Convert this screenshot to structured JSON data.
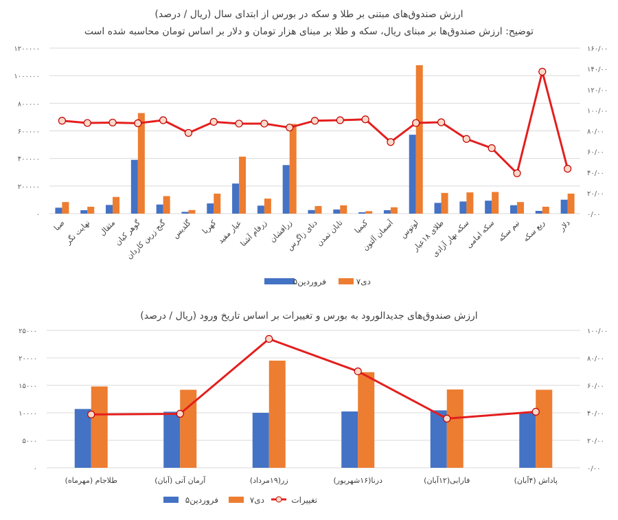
{
  "colors": {
    "series1": "#4472C4",
    "series2": "#ED7D31",
    "line": "#E41E1E",
    "marker_fill": "#FAD9C9",
    "marker_stroke": "#C00000"
  },
  "chart_data": [
    {
      "type": "bar",
      "title": "ارزش صندوق‌های مبتنی بر طلا و سکه در بورس از ابتدای سال (ریال / درصد)",
      "subtitle": "توضیح: ارزش صندوق‌ها بر مبنای ریال، سکه و طلا بر مبنای هزار تومان و دلار بر اساس تومان محاسبه شده است",
      "categories": [
        "صبا",
        "نهایت نگر",
        "مثقال",
        "گوهر کیان",
        "گنج زرین کاردان",
        "گلدیس",
        "کهربا",
        "عیار مفید",
        "زرفام آشنا",
        "زرافشان",
        "دنای زاگرس",
        "تابان تمدن",
        "کیمیا",
        "آسمان آلتون",
        "لوتوس",
        "طلای ۱۸عیار",
        "سکه بهار آزادی",
        "سکه امامی",
        "نیم سکه",
        "ربع سکه",
        "دلار"
      ],
      "series": [
        {
          "name": "۵فروردین",
          "axis": "left",
          "kind": "bar",
          "values": [
            43000,
            25000,
            63000,
            390000,
            66000,
            13000,
            74000,
            218000,
            58000,
            352000,
            26000,
            30000,
            10000,
            25000,
            572000,
            78000,
            88000,
            94000,
            61000,
            20000,
            101000
          ]
        },
        {
          "name": "۷دی",
          "axis": "left",
          "kind": "bar",
          "values": [
            84000,
            50000,
            121000,
            729000,
            127000,
            26000,
            145000,
            413000,
            109000,
            650000,
            55000,
            60000,
            18000,
            46000,
            1076000,
            150000,
            154000,
            157000,
            84000,
            50000,
            145000
          ]
        },
        {
          "axis": "right",
          "kind": "line",
          "values": [
            89.8,
            87.6,
            88,
            87.4,
            90.3,
            78,
            88.7,
            87,
            87,
            83.2,
            89.8,
            90.3,
            91.1,
            69.2,
            87.6,
            88.3,
            72.2,
            63.3,
            39,
            137.2,
            43.4
          ]
        }
      ],
      "ylim_left": [
        0,
        1200000
      ],
      "ylim_right": [
        0,
        160
      ],
      "left_ticks": [
        "۰",
        "۲۰۰۰۰۰",
        "۴۰۰۰۰۰",
        "۶۰۰۰۰۰",
        "۸۰۰۰۰۰",
        "۱۰۰۰۰۰۰",
        "۱۲۰۰۰۰۰"
      ],
      "right_ticks": [
        "۰/۰۰",
        "۲۰/۰۰",
        "۴۰/۰۰",
        "۶۰/۰۰",
        "۸۰/۰۰",
        "۱۰۰/۰۰",
        "۱۲۰/۰۰",
        "۱۴۰/۰۰",
        "۱۶۰/۰۰"
      ],
      "grid": true,
      "legend": [
        "۵فروردین",
        "۷دی"
      ],
      "legend_position": "bottom"
    },
    {
      "type": "bar",
      "title": "ارزش صندوق‌های جدیدالورود به بورس و تغییرات بر اساس تاریخ ورود (ریال / درصد)",
      "categories": [
        "طلاجام (مهرماه)",
        "آرمان آتی (آبان)",
        "زر(۱۹مرداد)",
        "درنا(۱۶شهریور)",
        "فارابی(۱۲آبان)",
        "پاداش (۴آبان)"
      ],
      "series": [
        {
          "name": "۵فروردین",
          "axis": "left",
          "kind": "bar",
          "values": [
            10700,
            10200,
            10000,
            10250,
            10450,
            10000
          ]
        },
        {
          "name": "۷دی",
          "axis": "left",
          "kind": "bar",
          "values": [
            14800,
            14200,
            19500,
            17400,
            14250,
            14200
          ]
        },
        {
          "name": "تغییرات",
          "axis": "right",
          "kind": "line",
          "values": [
            38.8,
            39.3,
            93.8,
            70.2,
            35.8,
            40.8
          ]
        }
      ],
      "ylim_left": [
        0,
        25000
      ],
      "ylim_right": [
        0,
        100
      ],
      "left_ticks": [
        "۰",
        "۵۰۰۰",
        "۱۰۰۰۰",
        "۱۵۰۰۰",
        "۲۰۰۰۰",
        "۲۵۰۰۰"
      ],
      "right_ticks": [
        "۰/۰۰",
        "۲۰/۰۰",
        "۴۰/۰۰",
        "۶۰/۰۰",
        "۸۰/۰۰",
        "۱۰۰/۰۰"
      ],
      "grid": true,
      "legend": [
        "تغییرات",
        "۷دی",
        "۵فروردین"
      ],
      "legend_position": "bottom"
    }
  ]
}
